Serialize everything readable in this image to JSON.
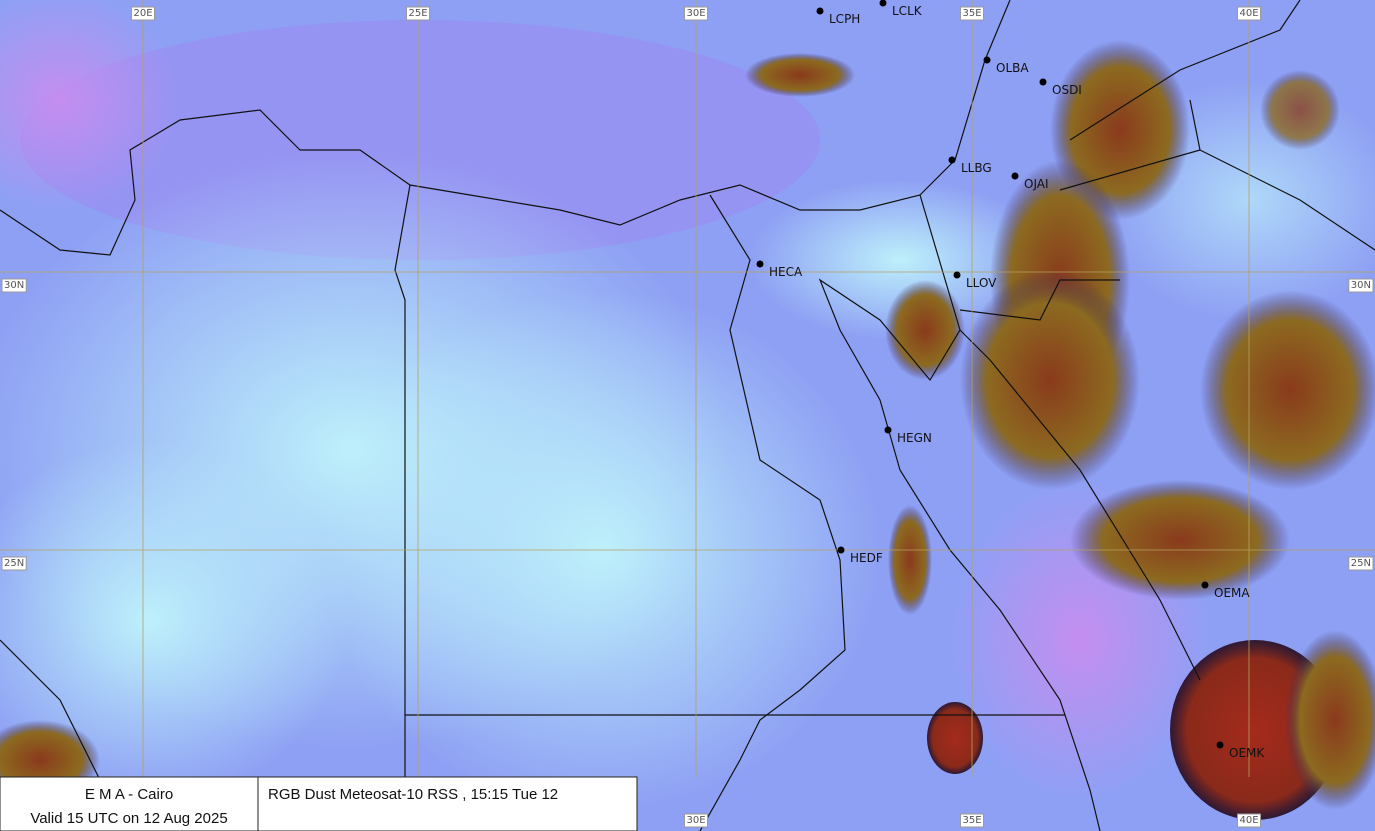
{
  "grid": {
    "longitudes": [
      "20E",
      "25E",
      "30E",
      "35E",
      "40E"
    ],
    "latitudes": [
      "30N",
      "25N"
    ]
  },
  "stations": [
    "LCPH",
    "LCLK",
    "OLBA",
    "OSDI",
    "LLBG",
    "OJAI",
    "HECA",
    "LLOV",
    "HEGN",
    "HEDF",
    "OEMA",
    "OEMK"
  ],
  "footer": {
    "agency": "E M A  -  Cairo",
    "valid": "Valid 15 UTC on 12 Aug 2025",
    "product": "RGB Dust Meteosat-10 RSS , 15:15  Tue 12"
  }
}
